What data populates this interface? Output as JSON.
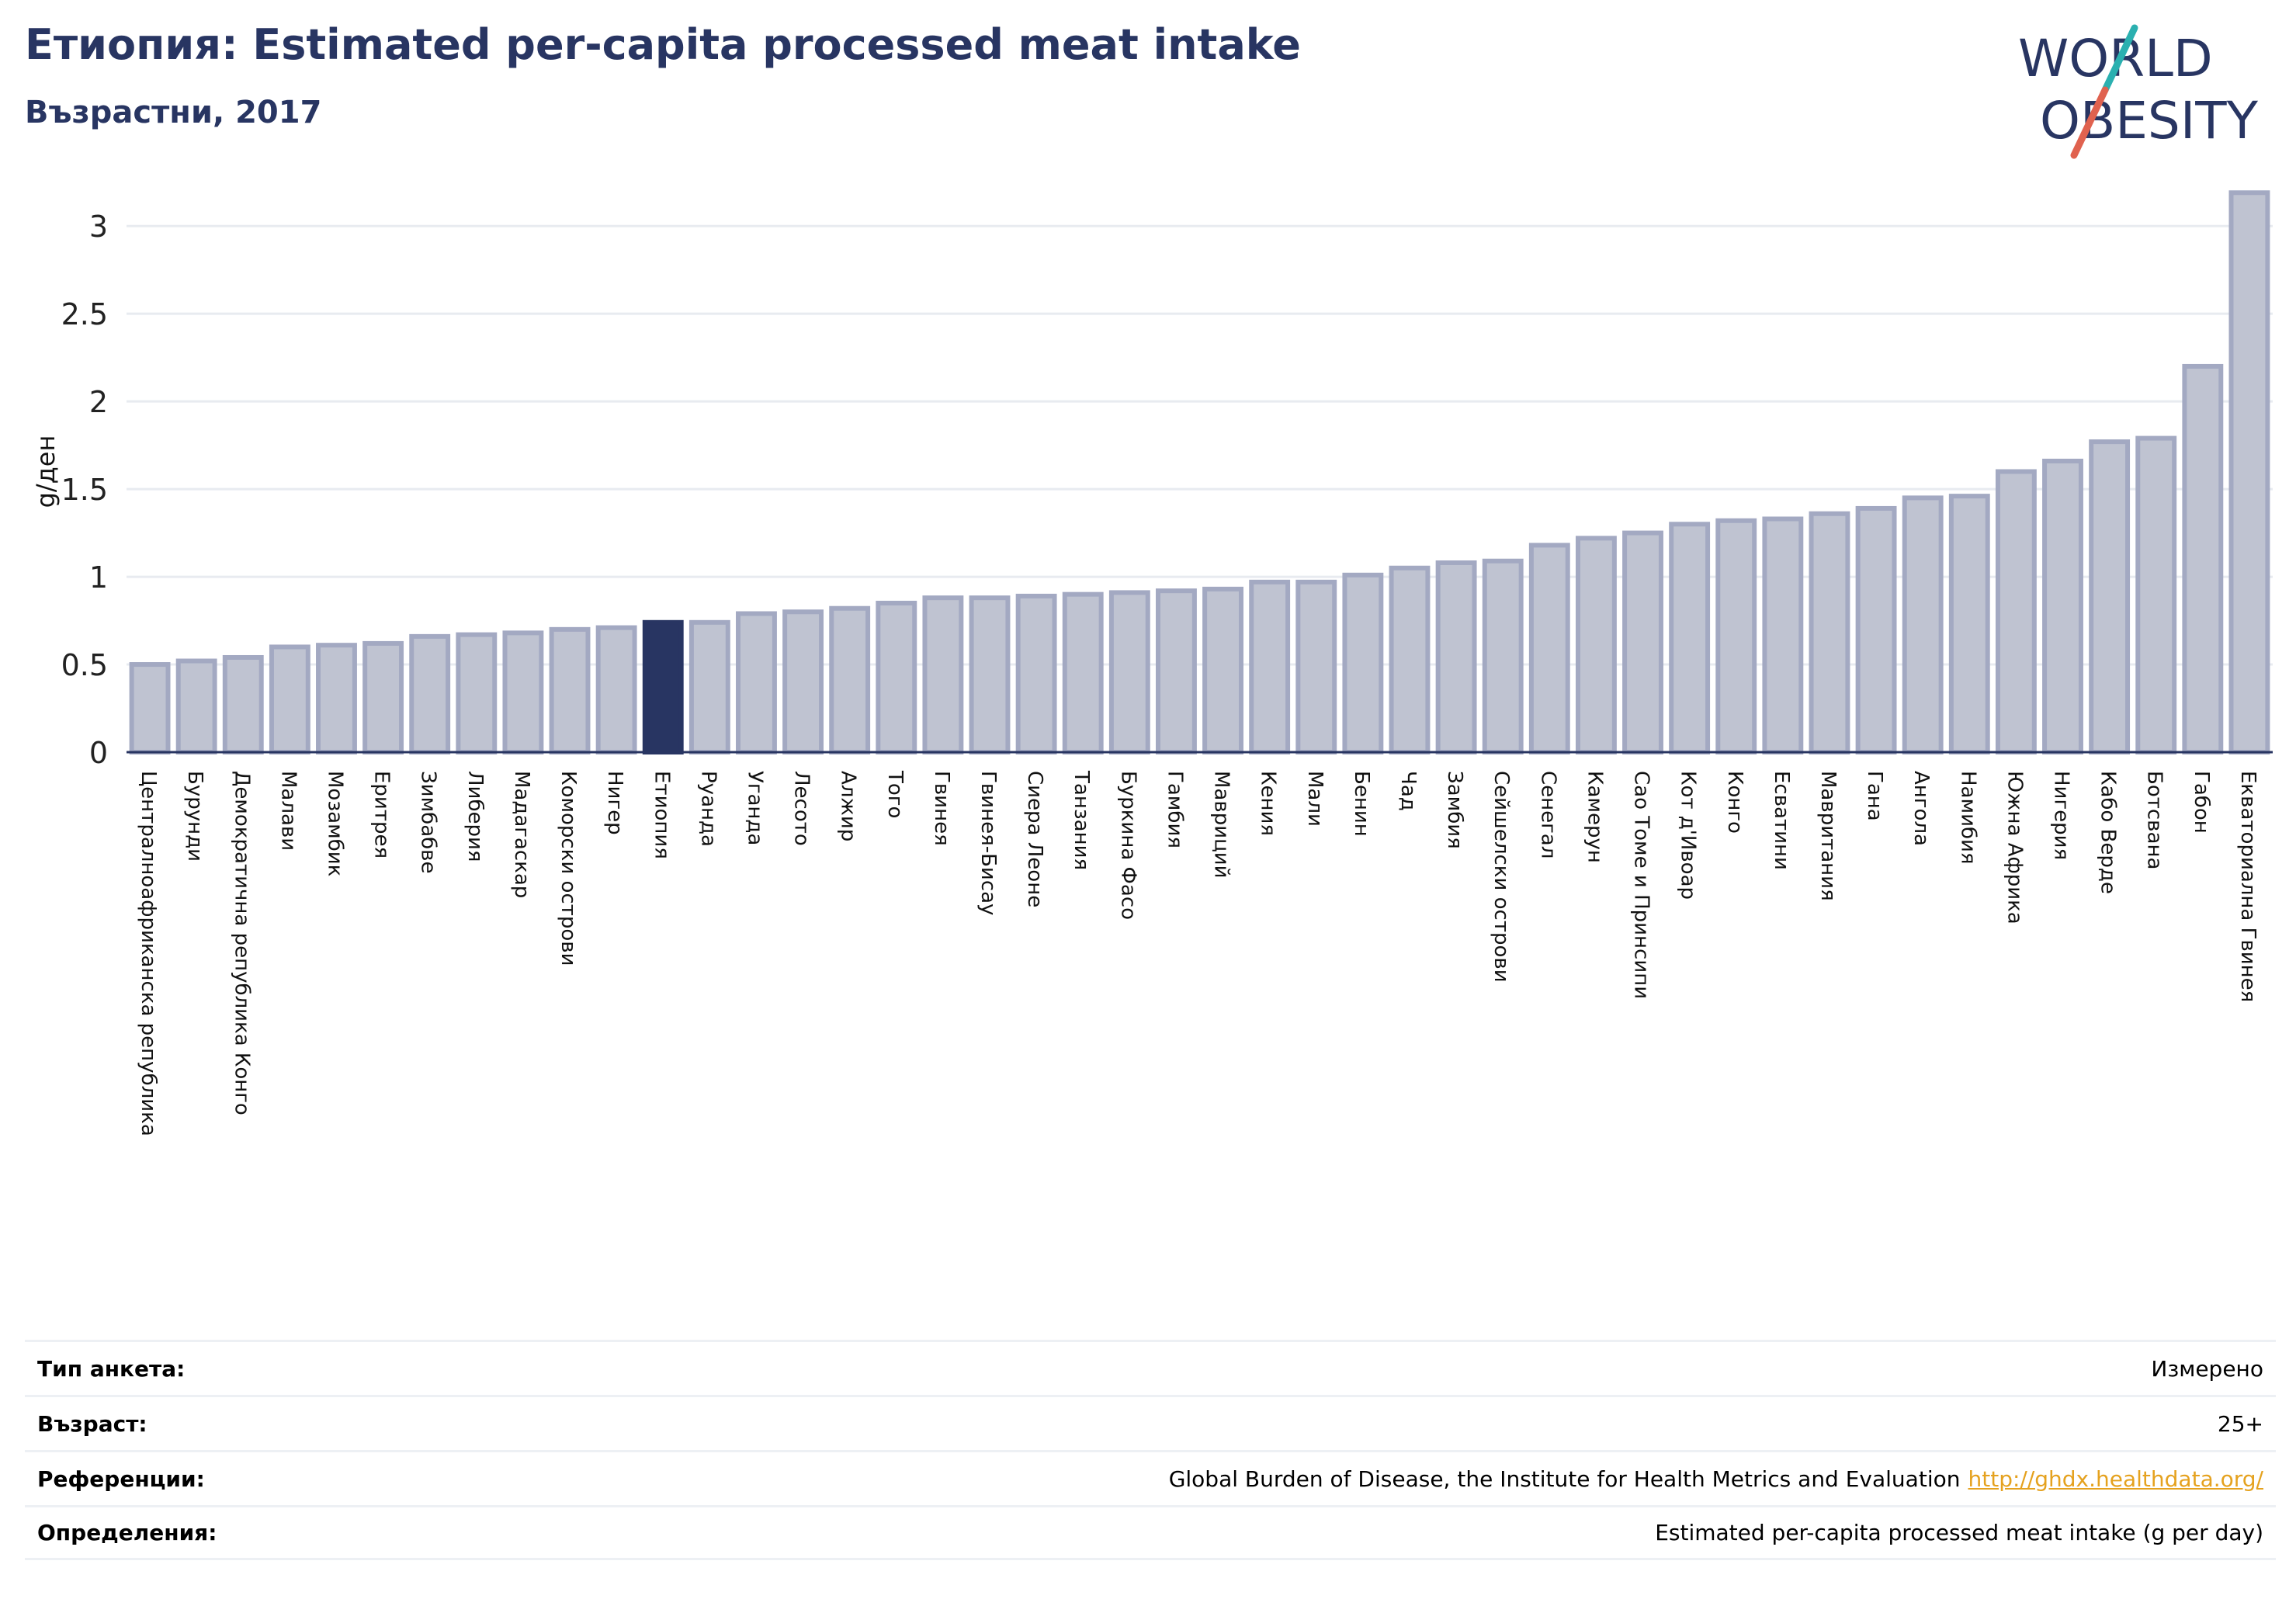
{
  "header": {
    "title": "Етиопия: Estimated per-capita processed meat intake",
    "subtitle": "Възрастни, 2017"
  },
  "logo": {
    "line1": "WORLD",
    "line2": "OBESITY",
    "accent_teal": "#2bb0b0",
    "accent_red": "#e0624f"
  },
  "colors": {
    "bar": "#bfc3d1",
    "bar_stroke": "#a3a9c2",
    "highlight": "#283562",
    "text": "#283562",
    "grid": "#e8ebf0"
  },
  "chart_data": {
    "type": "bar",
    "title": "Етиопия: Estimated per-capita processed meat intake",
    "subtitle": "Възрастни, 2017",
    "ylabel": "g/ден",
    "ylim": [
      0,
      3.2
    ],
    "yticks": [
      0,
      0.5,
      1,
      1.5,
      2,
      2.5,
      3
    ],
    "ytick_labels": [
      "0",
      "0.5",
      "1",
      "1.5",
      "2",
      "2.5",
      "3"
    ],
    "highlight": "Етиопия",
    "grid": true,
    "categories": [
      "Централноафриканска република",
      "Бурунди",
      "Демократична република Конго",
      "Малави",
      "Мозамбик",
      "Еритрея",
      "Зимбабве",
      "Либерия",
      "Мадагаскар",
      "Коморски острови",
      "Нигер",
      "Етиопия",
      "Руанда",
      "Уганда",
      "Лесото",
      "Алжир",
      "Того",
      "Гвинея",
      "Гвинея-Бисау",
      "Сиера Леоне",
      "Танзания",
      "Буркина Фасо",
      "Гамбия",
      "Мавриций",
      "Кения",
      "Мали",
      "Бенин",
      "Чад",
      "Замбия",
      "Сейшелски острови",
      "Сенегал",
      "Камерун",
      "Сао Томе и Принсипи",
      "Кот д'Ивоар",
      "Конго",
      "Есватини",
      "Мавритания",
      "Гана",
      "Ангола",
      "Намибия",
      "Южна Африка",
      "Нигерия",
      "Кабо Верде",
      "Ботсвана",
      "Габон",
      "Екваториална Гвинея"
    ],
    "values": [
      0.5,
      0.52,
      0.54,
      0.6,
      0.61,
      0.62,
      0.66,
      0.67,
      0.68,
      0.7,
      0.71,
      0.74,
      0.74,
      0.79,
      0.8,
      0.82,
      0.85,
      0.88,
      0.88,
      0.89,
      0.9,
      0.91,
      0.92,
      0.93,
      0.97,
      0.97,
      1.01,
      1.05,
      1.08,
      1.09,
      1.18,
      1.22,
      1.25,
      1.3,
      1.32,
      1.33,
      1.36,
      1.39,
      1.45,
      1.46,
      1.6,
      1.66,
      1.77,
      1.79,
      2.2,
      3.19
    ]
  },
  "info": {
    "rows": [
      {
        "label": "Тип анкета:",
        "value": "Измерено"
      },
      {
        "label": "Възраст:",
        "value": "25+"
      },
      {
        "label": "Референции:",
        "value": "Global Burden of Disease, the Institute for Health Metrics and Evaluation",
        "link": "http://ghdx.healthdata.org/"
      },
      {
        "label": "Определения:",
        "value": "Estimated per-capita processed meat intake (g per day)"
      }
    ]
  }
}
